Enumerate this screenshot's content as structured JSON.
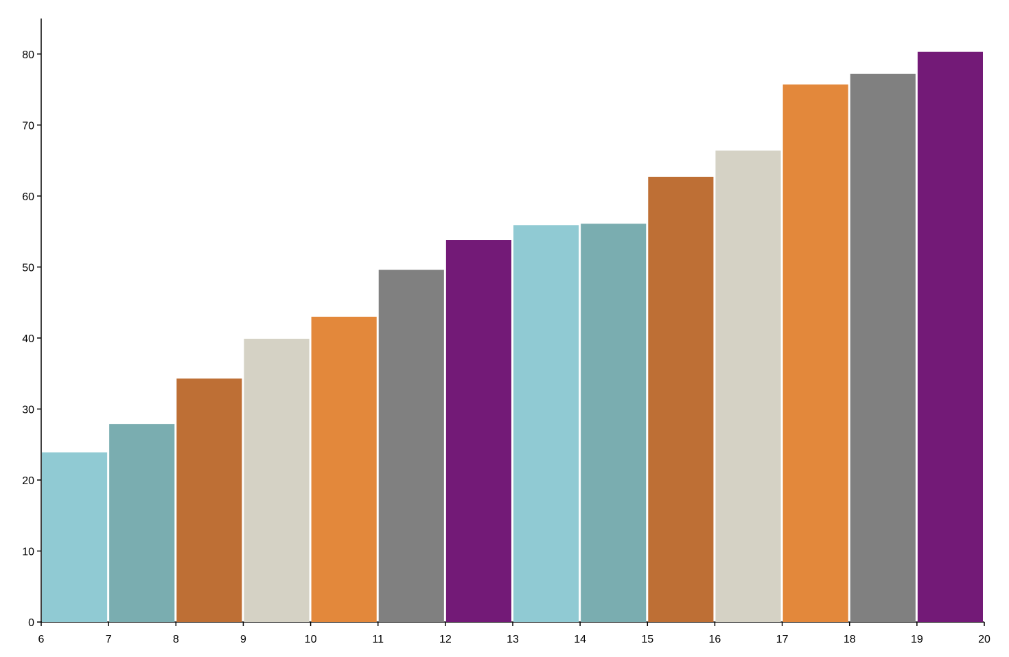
{
  "chart_data": {
    "type": "histogram",
    "bins": [
      6,
      7,
      8,
      9,
      10,
      11,
      12,
      13,
      14,
      15,
      16,
      17,
      18,
      19,
      20
    ],
    "values": [
      23.9,
      27.9,
      34.3,
      39.9,
      43.0,
      49.6,
      53.8,
      55.9,
      56.1,
      62.7,
      66.4,
      75.7,
      77.2,
      80.3
    ],
    "colors": [
      "#90cad3",
      "#7aadb0",
      "#be6f35",
      "#d5d2c5",
      "#e3883b",
      "#808080",
      "#731a77",
      "#90cad3",
      "#7aadb0",
      "#be6f35",
      "#d5d2c5",
      "#e3883b",
      "#808080",
      "#731a77"
    ],
    "xlim": [
      6,
      20
    ],
    "xticks": [
      6,
      7,
      8,
      9,
      10,
      11,
      12,
      13,
      14,
      15,
      16,
      17,
      18,
      19,
      20
    ],
    "ylim": [
      0,
      85
    ],
    "yticks": [
      0,
      10,
      20,
      30,
      40,
      50,
      60,
      70,
      80
    ]
  }
}
